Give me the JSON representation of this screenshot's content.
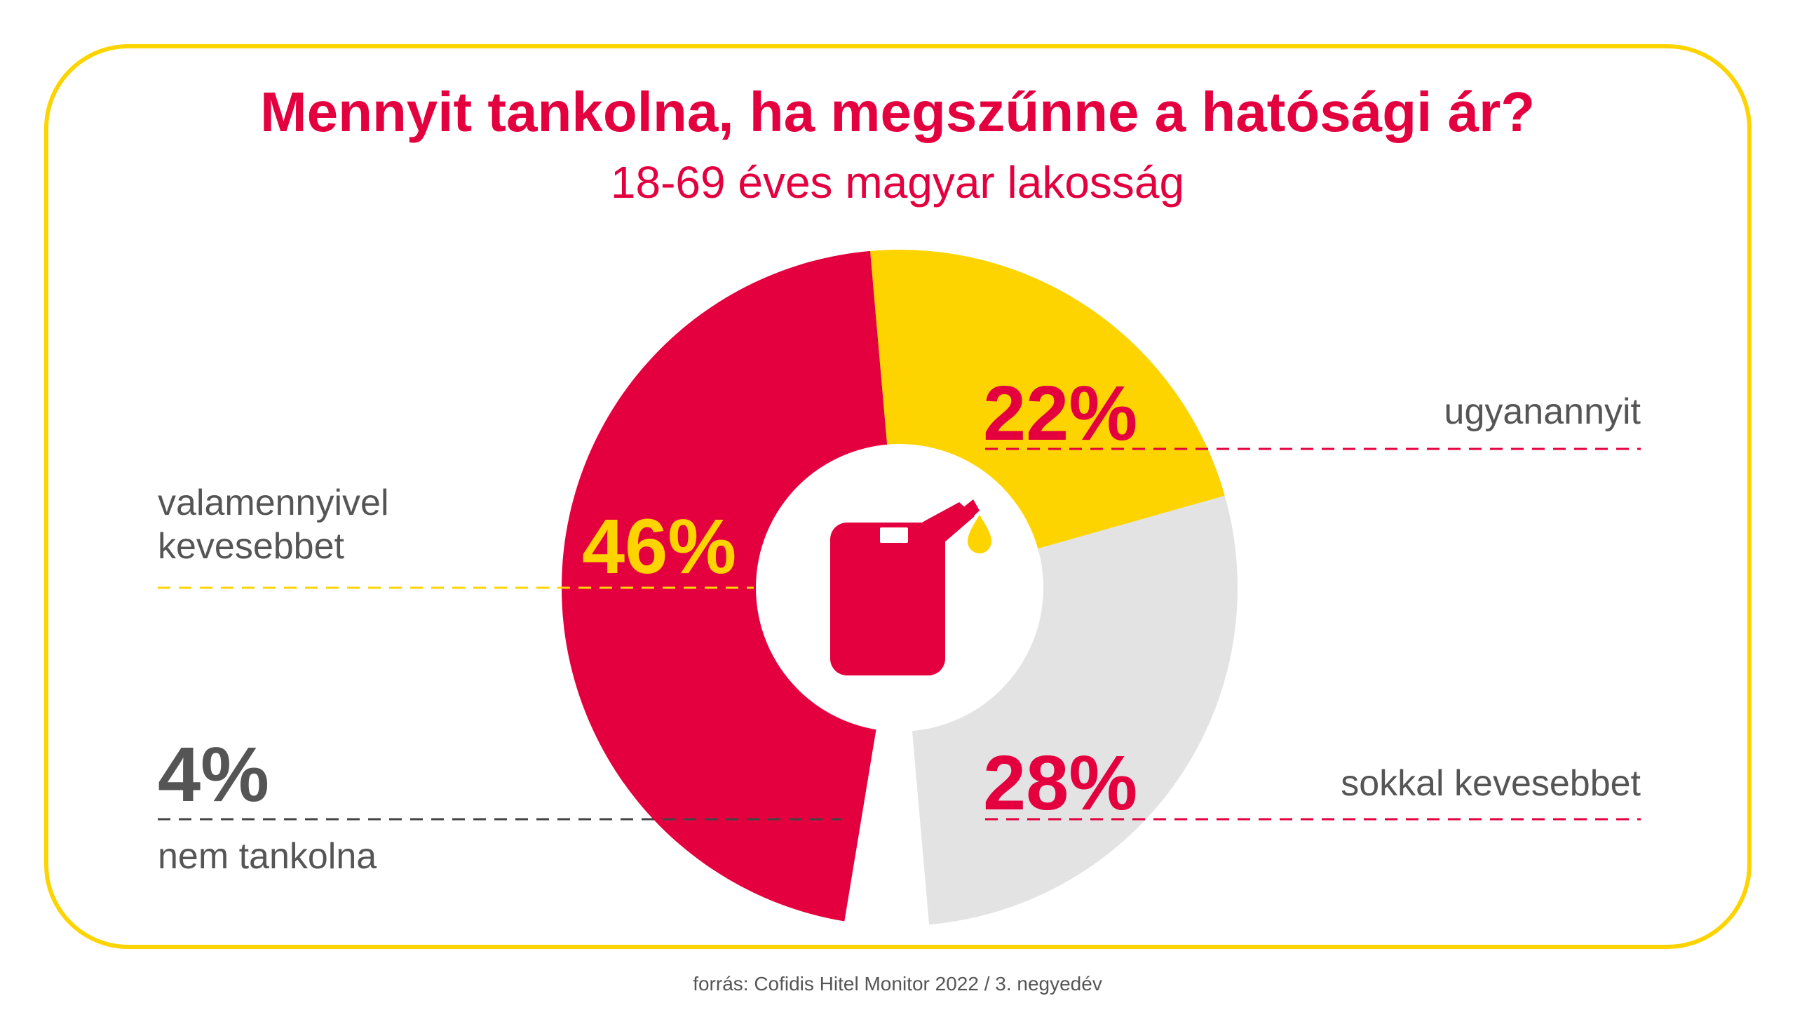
{
  "title": "Mennyit tankolna, ha megszűnne a hatósági ár?",
  "subtitle": "18-69 éves magyar lakosság",
  "source": "forrás: Cofidis Hitel Monitor 2022 / 3. negyedév",
  "colors": {
    "accent_red": "#e4003f",
    "accent_yellow": "#fdd400",
    "grey_slice": "#e3e3e3",
    "grey_text": "#555555",
    "dash_dark": "#444444"
  },
  "icon": "fuel-canister-icon",
  "chart_data": {
    "type": "pie",
    "style": "donut",
    "slices": [
      {
        "label": "ugyanannyit",
        "value": 22,
        "display": "22%",
        "color": "#fdd400"
      },
      {
        "label": "sokkal kevesebbet",
        "value": 28,
        "display": "28%",
        "color": "#e3e3e3"
      },
      {
        "label": "nem tankolna",
        "value": 4,
        "display": "4%",
        "color": "#ffffff"
      },
      {
        "label_lines": [
          "valamennyivel",
          "kevesebbet"
        ],
        "value": 46,
        "display": "46%",
        "color": "#e4003f"
      }
    ]
  }
}
